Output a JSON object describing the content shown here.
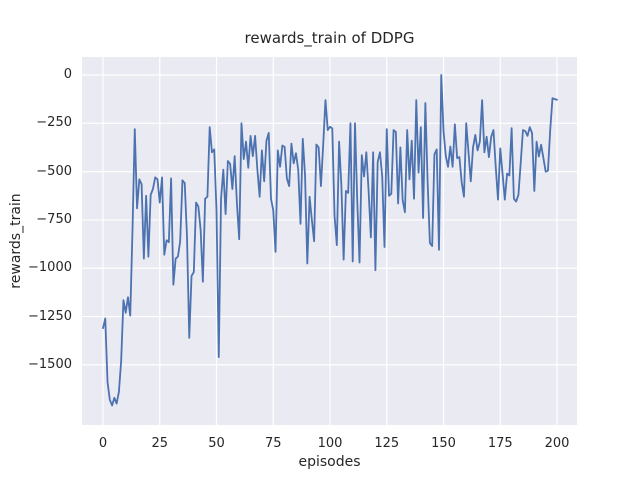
{
  "chart_data": {
    "type": "line",
    "title": "rewards_train of DDPG",
    "xlabel": "episodes",
    "ylabel": "rewards_train",
    "grid": true,
    "legend": "none",
    "xlim": [
      -9.25,
      208.8
    ],
    "ylim": [
      -1811,
      93
    ],
    "xticks": {
      "values": [
        0,
        25,
        50,
        75,
        100,
        125,
        150,
        175,
        200
      ],
      "labels": [
        "0",
        "25",
        "50",
        "75",
        "100",
        "125",
        "150",
        "175",
        "200"
      ]
    },
    "yticks": {
      "values": [
        0,
        -250,
        -500,
        -750,
        -1000,
        -1250,
        -1500
      ],
      "labels": [
        "0",
        "−250",
        "−500",
        "−750",
        "−1000",
        "−1250",
        "−1500"
      ]
    },
    "style": {
      "figure_bg": "#ffffff",
      "axes_bg": "#eaeaf2",
      "grid_color": "#ffffff",
      "line_color": "#4c72b0",
      "text_color": "#262626"
    },
    "series": [
      {
        "name": "rewards_train",
        "color": "#4c72b0",
        "x_start": 0,
        "x_step": 1,
        "values": [
          -1310,
          -1260,
          -1590,
          -1680,
          -1710,
          -1670,
          -1700,
          -1640,
          -1480,
          -1165,
          -1230,
          -1150,
          -1245,
          -800,
          -280,
          -690,
          -540,
          -565,
          -950,
          -625,
          -940,
          -620,
          -590,
          -530,
          -540,
          -660,
          -530,
          -930,
          -855,
          -865,
          -535,
          -1085,
          -950,
          -940,
          -860,
          -545,
          -560,
          -835,
          -1360,
          -1040,
          -1020,
          -660,
          -680,
          -800,
          -1070,
          -640,
          -630,
          -270,
          -400,
          -385,
          -700,
          -1460,
          -640,
          -490,
          -720,
          -445,
          -460,
          -590,
          -420,
          -665,
          -850,
          -250,
          -435,
          -345,
          -480,
          -315,
          -420,
          -315,
          -490,
          -630,
          -390,
          -550,
          -340,
          -300,
          -640,
          -700,
          -915,
          -390,
          -475,
          -365,
          -372,
          -535,
          -575,
          -355,
          -457,
          -405,
          -491,
          -770,
          -330,
          -520,
          -975,
          -630,
          -750,
          -860,
          -360,
          -375,
          -575,
          -360,
          -130,
          -285,
          -268,
          -276,
          -730,
          -880,
          -345,
          -570,
          -955,
          -600,
          -610,
          -250,
          -965,
          -250,
          -650,
          -970,
          -415,
          -525,
          -400,
          -600,
          -840,
          -400,
          -1010,
          -450,
          -400,
          -525,
          -890,
          -280,
          -625,
          -615,
          -285,
          -295,
          -665,
          -375,
          -647,
          -710,
          -285,
          -540,
          -340,
          -640,
          -130,
          -505,
          -270,
          -740,
          -145,
          -556,
          -870,
          -885,
          -410,
          -385,
          -905,
          0,
          -290,
          -420,
          -475,
          -370,
          -475,
          -255,
          -430,
          -425,
          -555,
          -630,
          -250,
          -400,
          -550,
          -375,
          -310,
          -390,
          -345,
          -130,
          -400,
          -320,
          -425,
          -320,
          -285,
          -475,
          -645,
          -380,
          -510,
          -645,
          -510,
          -520,
          -275,
          -640,
          -655,
          -620,
          -455,
          -285,
          -290,
          -315,
          -270,
          -300,
          -600,
          -345,
          -422,
          -361,
          -430,
          -500,
          -495,
          -285,
          -120,
          -125,
          -128
        ]
      }
    ]
  }
}
